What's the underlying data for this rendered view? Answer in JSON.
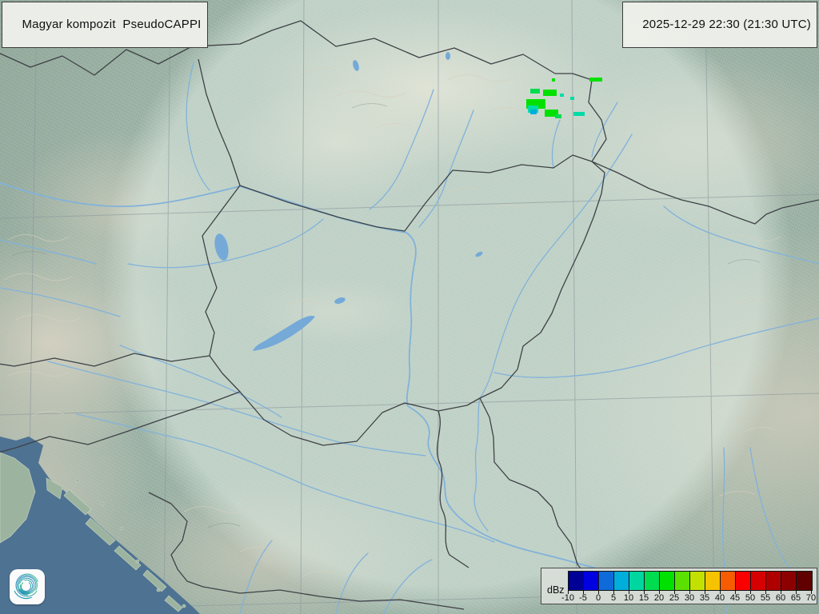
{
  "header": {
    "product_label": "Magyar kompozit  PseudoCAPPI",
    "timestamp": "2025-12-29 22:30 (21:30 UTC)"
  },
  "legend": {
    "unit": "dBz",
    "tick_labels": [
      "-10",
      "-5",
      "0",
      "5",
      "10",
      "15",
      "20",
      "25",
      "30",
      "35",
      "40",
      "45",
      "50",
      "55",
      "60",
      "65",
      "70"
    ],
    "cell_colors": [
      "#000096",
      "#0000E1",
      "#0F6BD9",
      "#00AEDC",
      "#00D7A0",
      "#00DC50",
      "#00E100",
      "#5AE100",
      "#C3E100",
      "#F5C300",
      "#F75C00",
      "#FA0000",
      "#D70000",
      "#AF0000",
      "#8C0000",
      "#600000"
    ]
  },
  "map": {
    "colors": {
      "land": "#9bb2a5",
      "relief_highlight": "#d9d3c0",
      "coverage_wash": "#e5f1e9",
      "sea": "#4e7292",
      "island": "#9cb49f",
      "lake": "#74a9d8",
      "river": "#82b2da",
      "border": "#3e4246",
      "graticule": "#8d979d"
    },
    "echoes": [
      [
        737,
        97,
        16,
        5,
        "#00E100"
      ],
      [
        690,
        98,
        4,
        4,
        "#00E100"
      ],
      [
        663,
        111,
        12,
        6,
        "#00DC50"
      ],
      [
        679,
        112,
        17,
        8,
        "#00E100"
      ],
      [
        700,
        117,
        5,
        4,
        "#00DCA5"
      ],
      [
        713,
        121,
        5,
        4,
        "#00DCA5"
      ],
      [
        658,
        124,
        24,
        12,
        "#00E100"
      ],
      [
        660,
        132,
        13,
        9,
        "#00DCA5"
      ],
      [
        663,
        137,
        8,
        6,
        "#00AEDC"
      ],
      [
        681,
        137,
        17,
        9,
        "#00E100"
      ],
      [
        694,
        143,
        8,
        5,
        "#00DC50"
      ],
      [
        717,
        140,
        14,
        5,
        "#00DCA5"
      ]
    ]
  },
  "logo": {
    "icon": "hungaromet-spiral"
  }
}
